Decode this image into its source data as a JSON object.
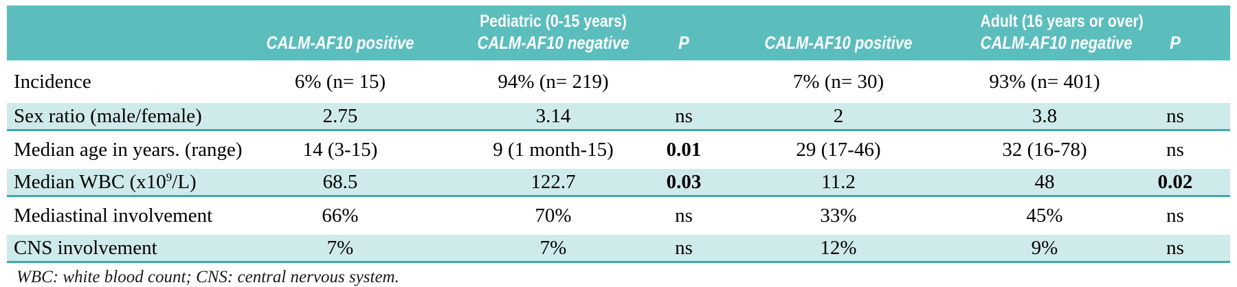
{
  "colors": {
    "header_bg": "#5cbdbd",
    "shade_bg": "#cfeaea",
    "rule": "#3aabab",
    "header_text": "#ffffff",
    "body_text": "#000000"
  },
  "header": {
    "gene": "CALM-AF10",
    "positive": "positive",
    "negative": "negative",
    "pediatric_group": "Pediatric (0-15 years)",
    "adult_group": "Adult (16 years or over)",
    "p": "P"
  },
  "rows": [
    {
      "label": "Incidence",
      "ped_pos": "6% (n= 15)",
      "ped_neg": "94% (n= 219)",
      "ped_p": "",
      "ad_pos": "7% (n= 30)",
      "ad_neg": "93% (n= 401)",
      "ad_p": ""
    },
    {
      "label": "Sex ratio (male/female)",
      "ped_pos": "2.75",
      "ped_neg": "3.14",
      "ped_p": "ns",
      "ad_pos": "2",
      "ad_neg": "3.8",
      "ad_p": "ns"
    },
    {
      "label": "Median age in years. (range)",
      "ped_pos": "14 (3-15)",
      "ped_neg": "9 (1 month-15)",
      "ped_p": "0.01",
      "ad_pos": "29 (17-46)",
      "ad_neg": "32 (16-78)",
      "ad_p": "ns"
    },
    {
      "label_prefix": "Median WBC (x10",
      "label_sup": "9",
      "label_suffix": "/L)",
      "ped_pos": "68.5",
      "ped_neg": "122.7",
      "ped_p": "0.03",
      "ad_pos": "11.2",
      "ad_neg": "48",
      "ad_p": "0.02"
    },
    {
      "label": "Mediastinal involvement",
      "ped_pos": "66%",
      "ped_neg": "70%",
      "ped_p": "ns",
      "ad_pos": "33%",
      "ad_neg": "45%",
      "ad_p": "ns"
    },
    {
      "label": "CNS involvement",
      "ped_pos": "7%",
      "ped_neg": "7%",
      "ped_p": "ns",
      "ad_pos": "12%",
      "ad_neg": "9%",
      "ad_p": "ns"
    }
  ],
  "footnote": "WBC: white blood count; CNS: central nervous system."
}
